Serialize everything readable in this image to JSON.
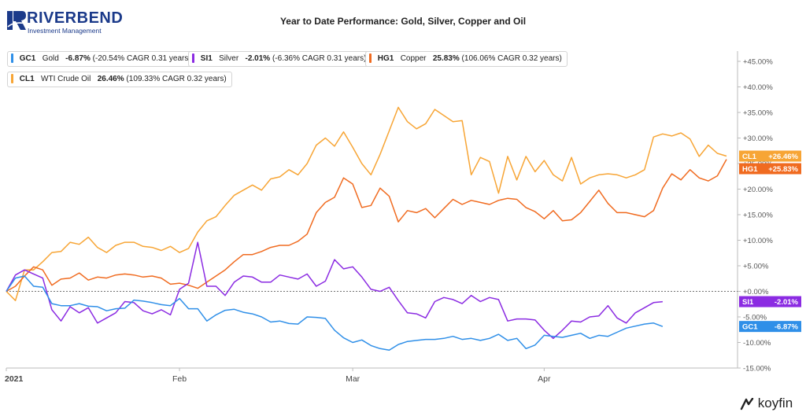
{
  "brand": {
    "name": "RIVERBEND",
    "tagline": "Investment Management"
  },
  "footer": {
    "name": "koyfin"
  },
  "chart_data": {
    "type": "line",
    "title": "Year to Date Performance: Gold, Silver, Copper and Oil",
    "xlabel": "",
    "ylabel": "",
    "ylim": [
      -15,
      47
    ],
    "y_ticks": [
      -15,
      -10,
      -5,
      0,
      5,
      10,
      15,
      20,
      25,
      30,
      35,
      40,
      45
    ],
    "y_tick_labels": [
      "-15.00%",
      "-10.00%",
      "-5.00%",
      "+0.00%",
      "+5.00%",
      "+10.00%",
      "+15.00%",
      "+20.00%",
      "+25.00%",
      "+30.00%",
      "+35.00%",
      "+40.00%",
      "+45.00%"
    ],
    "x_tick_labels": [
      "2021",
      "Feb",
      "Mar",
      "Apr"
    ],
    "x_tick_index": [
      0,
      19,
      38,
      59
    ],
    "grid": false,
    "zero_line": true,
    "legend_position": "top-left",
    "series": [
      {
        "name": "GC1",
        "label": "Gold",
        "legend_value": "-6.87%",
        "legend_detail": "(-20.54% CAGR 0.31 years)",
        "end_label": "-6.87%",
        "color": "#2f8fe8",
        "values": [
          0,
          2.6,
          3.0,
          1.0,
          0.8,
          -2.4,
          -2.8,
          -2.8,
          -2.4,
          -2.9,
          -3.0,
          -3.8,
          -3.4,
          -3.3,
          -1.7,
          -1.9,
          -2.2,
          -2.6,
          -2.8,
          -1.4,
          -3.4,
          -3.4,
          -5.8,
          -4.6,
          -3.7,
          -3.5,
          -4.1,
          -4.4,
          -5.0,
          -6.0,
          -5.8,
          -6.3,
          -6.4,
          -5.0,
          -5.1,
          -5.3,
          -7.6,
          -9.1,
          -10.0,
          -9.5,
          -10.6,
          -11.2,
          -11.5,
          -10.4,
          -9.8,
          -9.6,
          -9.4,
          -9.4,
          -9.2,
          -8.8,
          -9.4,
          -9.2,
          -9.6,
          -9.2,
          -8.4,
          -9.6,
          -9.2,
          -11.2,
          -10.5,
          -8.6,
          -8.8,
          -9.0,
          -8.6,
          -8.2,
          -9.2,
          -8.6,
          -8.8,
          -8.0,
          -7.2,
          -6.8,
          -6.4,
          -6.2,
          -6.87
        ]
      },
      {
        "name": "SI1",
        "label": "Silver",
        "legend_value": "-2.01%",
        "legend_detail": "(-6.36% CAGR 0.31 years)",
        "end_label": "-2.01%",
        "color": "#8b2be2",
        "values": [
          0,
          3.2,
          4.2,
          3.4,
          2.6,
          -3.6,
          -5.8,
          -3.0,
          -4.2,
          -3.2,
          -6.2,
          -5.2,
          -4.2,
          -2.0,
          -2.2,
          -3.8,
          -4.4,
          -3.6,
          -4.6,
          0.4,
          1.6,
          9.6,
          1.0,
          1.0,
          -0.8,
          1.8,
          3.0,
          2.8,
          1.8,
          1.8,
          3.2,
          2.8,
          2.4,
          3.4,
          1.0,
          2.0,
          6.2,
          4.4,
          4.8,
          2.8,
          0.4,
          0.0,
          0.8,
          -1.8,
          -4.2,
          -4.4,
          -5.2,
          -2.0,
          -1.2,
          -1.6,
          -2.4,
          -0.8,
          -2.0,
          -1.2,
          -1.6,
          -5.8,
          -5.4,
          -5.4,
          -5.6,
          -7.6,
          -9.2,
          -7.6,
          -5.8,
          -6.0,
          -5.0,
          -4.8,
          -2.8,
          -5.2,
          -6.2,
          -4.2,
          -3.2,
          -2.2,
          -2.01
        ]
      },
      {
        "name": "HG1",
        "label": "Copper",
        "legend_value": "25.83%",
        "legend_detail": "(106.06% CAGR 0.32 years)",
        "end_label": "+25.83%",
        "color": "#f06b20",
        "values": [
          0,
          1.0,
          3.0,
          4.8,
          4.2,
          1.2,
          2.4,
          2.6,
          3.6,
          2.2,
          2.8,
          2.6,
          3.2,
          3.4,
          3.2,
          2.8,
          3.0,
          2.6,
          1.4,
          1.6,
          1.2,
          0.6,
          1.8,
          3.0,
          4.2,
          5.8,
          7.2,
          7.2,
          7.8,
          8.6,
          9.0,
          9.0,
          9.8,
          11.2,
          15.4,
          17.4,
          18.4,
          22.2,
          21.0,
          16.4,
          16.8,
          20.2,
          18.6,
          13.6,
          15.8,
          15.4,
          16.2,
          14.4,
          16.2,
          18.0,
          17.0,
          17.8,
          17.4,
          17.0,
          17.8,
          18.2,
          18.0,
          16.4,
          15.6,
          14.2,
          15.8,
          13.8,
          14.0,
          15.4,
          17.6,
          19.8,
          17.2,
          15.4,
          15.4,
          15.0,
          14.6,
          15.8,
          20.2,
          23.0,
          21.8,
          23.8,
          22.2,
          21.6,
          22.6,
          25.83
        ]
      },
      {
        "name": "CL1",
        "label": "WTI Crude Oil",
        "legend_value": "26.46%",
        "legend_detail": "(109.33% CAGR 0.32 years)",
        "end_label": "+26.46%",
        "color": "#f7a535",
        "values": [
          0,
          -1.8,
          4.2,
          4.2,
          5.8,
          7.6,
          7.8,
          9.6,
          9.2,
          10.6,
          8.6,
          7.6,
          9.0,
          9.6,
          9.6,
          8.8,
          8.6,
          8.0,
          8.8,
          7.6,
          8.4,
          11.6,
          13.8,
          14.6,
          16.8,
          18.8,
          19.8,
          20.8,
          19.8,
          22.0,
          22.4,
          23.8,
          22.8,
          25.0,
          28.6,
          30.0,
          28.4,
          31.2,
          28.2,
          25.0,
          22.8,
          26.8,
          31.4,
          36.0,
          33.2,
          31.8,
          32.8,
          35.6,
          34.4,
          33.2,
          33.4,
          22.8,
          26.2,
          25.4,
          19.2,
          26.4,
          21.8,
          26.4,
          23.4,
          25.6,
          22.8,
          21.6,
          26.2,
          21.0,
          22.2,
          22.8,
          23.0,
          22.8,
          22.2,
          22.8,
          23.8,
          30.2,
          30.8,
          30.4,
          31.0,
          29.8,
          26.4,
          28.6,
          27.0,
          26.46
        ]
      }
    ]
  }
}
